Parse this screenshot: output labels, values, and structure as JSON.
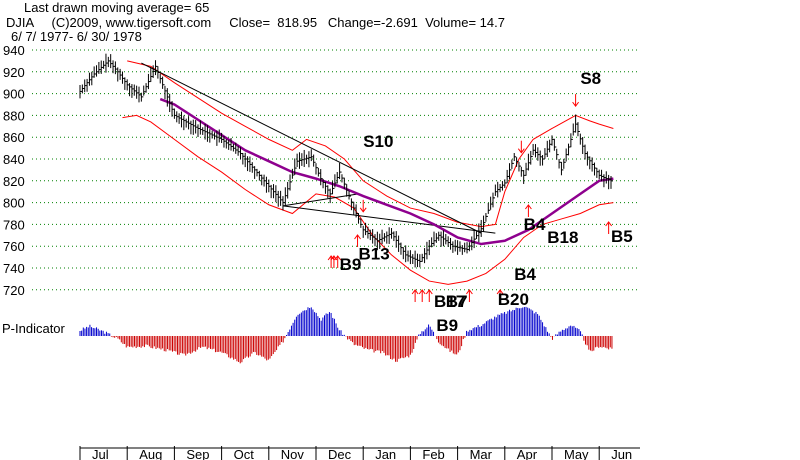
{
  "header": {
    "line1": "Last drawn moving average= 65",
    "line2": "DJIA     (C)2009, www.tigersoft.com     Close=  818.95   Change=-2.691  Volume= 14.7",
    "line3": "6/ 7/ 1977- 6/ 30/ 1978"
  },
  "colors": {
    "price": "#000000",
    "bands": "#ff0000",
    "ma": "#8e008e",
    "trendline": "#000000",
    "grid": "#008000",
    "pos_indicator": "#0000cc",
    "neg_indicator": "#cc0000",
    "arrows": "#ff0000"
  },
  "chart_data": {
    "type": "line",
    "title": "DJIA",
    "ylim": [
      720,
      940
    ],
    "yticks": [
      940,
      920,
      900,
      880,
      860,
      840,
      820,
      800,
      780,
      760,
      740,
      720
    ],
    "months": [
      "Jul",
      "Aug",
      "Sep",
      "Oct",
      "Nov",
      "Dec",
      "Jan",
      "Feb",
      "Mar",
      "Apr",
      "May",
      "Jun"
    ],
    "series": [
      {
        "type": "price",
        "x": [
          0,
          0.3,
          0.6,
          0.8,
          1.0,
          1.3,
          1.6,
          2.0,
          2.5,
          3.0,
          3.4,
          3.7,
          4.0,
          4.3,
          4.6,
          4.9,
          5.1,
          5.3,
          5.5,
          5.8,
          6.0,
          6.3,
          6.6,
          6.9,
          7.2,
          7.4,
          7.6,
          7.9,
          8.2,
          8.5,
          8.8,
          9.0,
          9.2,
          9.4,
          9.6,
          9.8,
          10.0,
          10.2,
          10.5,
          10.7,
          11.0,
          11.3
        ],
        "y": [
          902,
          918,
          930,
          920,
          908,
          897,
          925,
          880,
          868,
          858,
          845,
          830,
          815,
          800,
          838,
          842,
          822,
          808,
          828,
          795,
          775,
          765,
          772,
          752,
          746,
          760,
          770,
          760,
          757,
          776,
          810,
          818,
          842,
          825,
          848,
          840,
          858,
          830,
          872,
          845,
          825,
          818.95
        ]
      },
      {
        "type": "ma65",
        "x": [
          1.7,
          2.0,
          2.5,
          3.0,
          3.5,
          4.0,
          4.5,
          5.0,
          5.5,
          6.0,
          6.5,
          7.0,
          7.5,
          8.0,
          8.5,
          9.0,
          9.5,
          10.0,
          10.5,
          11.0,
          11.3
        ],
        "y": [
          895,
          890,
          876,
          862,
          848,
          838,
          828,
          822,
          815,
          806,
          798,
          790,
          780,
          768,
          762,
          765,
          775,
          790,
          805,
          820,
          822
        ]
      },
      {
        "type": "upper_band",
        "x": [
          1.0,
          1.5,
          2.0,
          2.5,
          3.0,
          3.5,
          4.0,
          4.5,
          4.8,
          5.2,
          5.6,
          6.0,
          6.5,
          7.0,
          7.5,
          8.0,
          8.5,
          8.8,
          9.0,
          9.3,
          9.6,
          10.0,
          10.5,
          10.8,
          11.0,
          11.3
        ],
        "y": [
          930,
          925,
          910,
          896,
          882,
          870,
          858,
          848,
          858,
          852,
          840,
          820,
          806,
          795,
          790,
          782,
          778,
          780,
          810,
          840,
          858,
          868,
          880,
          875,
          872,
          868
        ]
      },
      {
        "type": "lower_band",
        "x": [
          0.9,
          1.2,
          1.5,
          2.0,
          2.5,
          3.0,
          3.5,
          4.0,
          4.5,
          5.0,
          5.4,
          5.8,
          6.2,
          6.6,
          7.0,
          7.4,
          7.8,
          8.2,
          8.6,
          9.0,
          9.4,
          9.8,
          10.2,
          10.6,
          11.0,
          11.3
        ],
        "y": [
          878,
          880,
          874,
          858,
          842,
          828,
          812,
          798,
          790,
          808,
          805,
          795,
          770,
          752,
          738,
          728,
          725,
          728,
          735,
          748,
          768,
          780,
          785,
          790,
          798,
          800
        ]
      }
    ],
    "trendlines": [
      {
        "x": [
          1.3,
          8.5
        ],
        "y": [
          928,
          772
        ]
      },
      {
        "x": [
          4.3,
          8.8
        ],
        "y": [
          797,
          772
        ]
      },
      {
        "x": [
          4.3,
          5.9
        ],
        "y": [
          797,
          808
        ]
      }
    ],
    "signals": [
      {
        "label": "S8",
        "x": 10.6,
        "y": 909
      },
      {
        "label": "S10",
        "x": 6.0,
        "y": 851
      },
      {
        "label": "B4",
        "x": 9.4,
        "y": 775
      },
      {
        "label": "B18",
        "x": 9.9,
        "y": 763
      },
      {
        "label": "B5",
        "x": 11.25,
        "y": 764
      },
      {
        "label": "B13",
        "x": 5.9,
        "y": 748
      },
      {
        "label": "B9",
        "x": 5.5,
        "y": 738
      },
      {
        "label": "B4",
        "x": 9.2,
        "y": 729
      },
      {
        "label": "B17",
        "x": 7.5,
        "y": 704
      },
      {
        "label": "B7",
        "x": 7.75,
        "y": 704
      },
      {
        "label": "B20",
        "x": 8.85,
        "y": 706
      },
      {
        "label": "B9",
        "x": 7.55,
        "y": 682
      }
    ],
    "arrows_up": [
      5.32,
      5.38,
      5.46,
      5.88,
      7.1,
      7.25,
      7.4,
      8.25,
      8.9,
      9.5,
      11.2
    ],
    "arrows_down": [
      6.0,
      9.35,
      10.5
    ],
    "p_indicator": {
      "label": "P-Indicator",
      "x": [
        0,
        0.2,
        0.5,
        0.8,
        1.0,
        1.4,
        1.8,
        2.2,
        2.6,
        3.0,
        3.4,
        3.7,
        4.0,
        4.3,
        4.6,
        4.9,
        5.1,
        5.3,
        5.5,
        5.8,
        6.1,
        6.4,
        6.7,
        7.0,
        7.2,
        7.4,
        7.6,
        7.8,
        8.0,
        8.2,
        8.5,
        8.8,
        9.1,
        9.4,
        9.7,
        10.0,
        10.2,
        10.4,
        10.6,
        10.8,
        11.0,
        11.3
      ],
      "y": [
        10,
        18,
        8,
        -5,
        -20,
        -18,
        -25,
        -35,
        -20,
        -30,
        -48,
        -30,
        -45,
        -10,
        40,
        55,
        30,
        45,
        10,
        -15,
        -25,
        -30,
        -45,
        -35,
        5,
        20,
        -10,
        -25,
        -35,
        10,
        20,
        35,
        45,
        55,
        40,
        -5,
        10,
        20,
        8,
        -30,
        -18,
        -25
      ]
    }
  }
}
